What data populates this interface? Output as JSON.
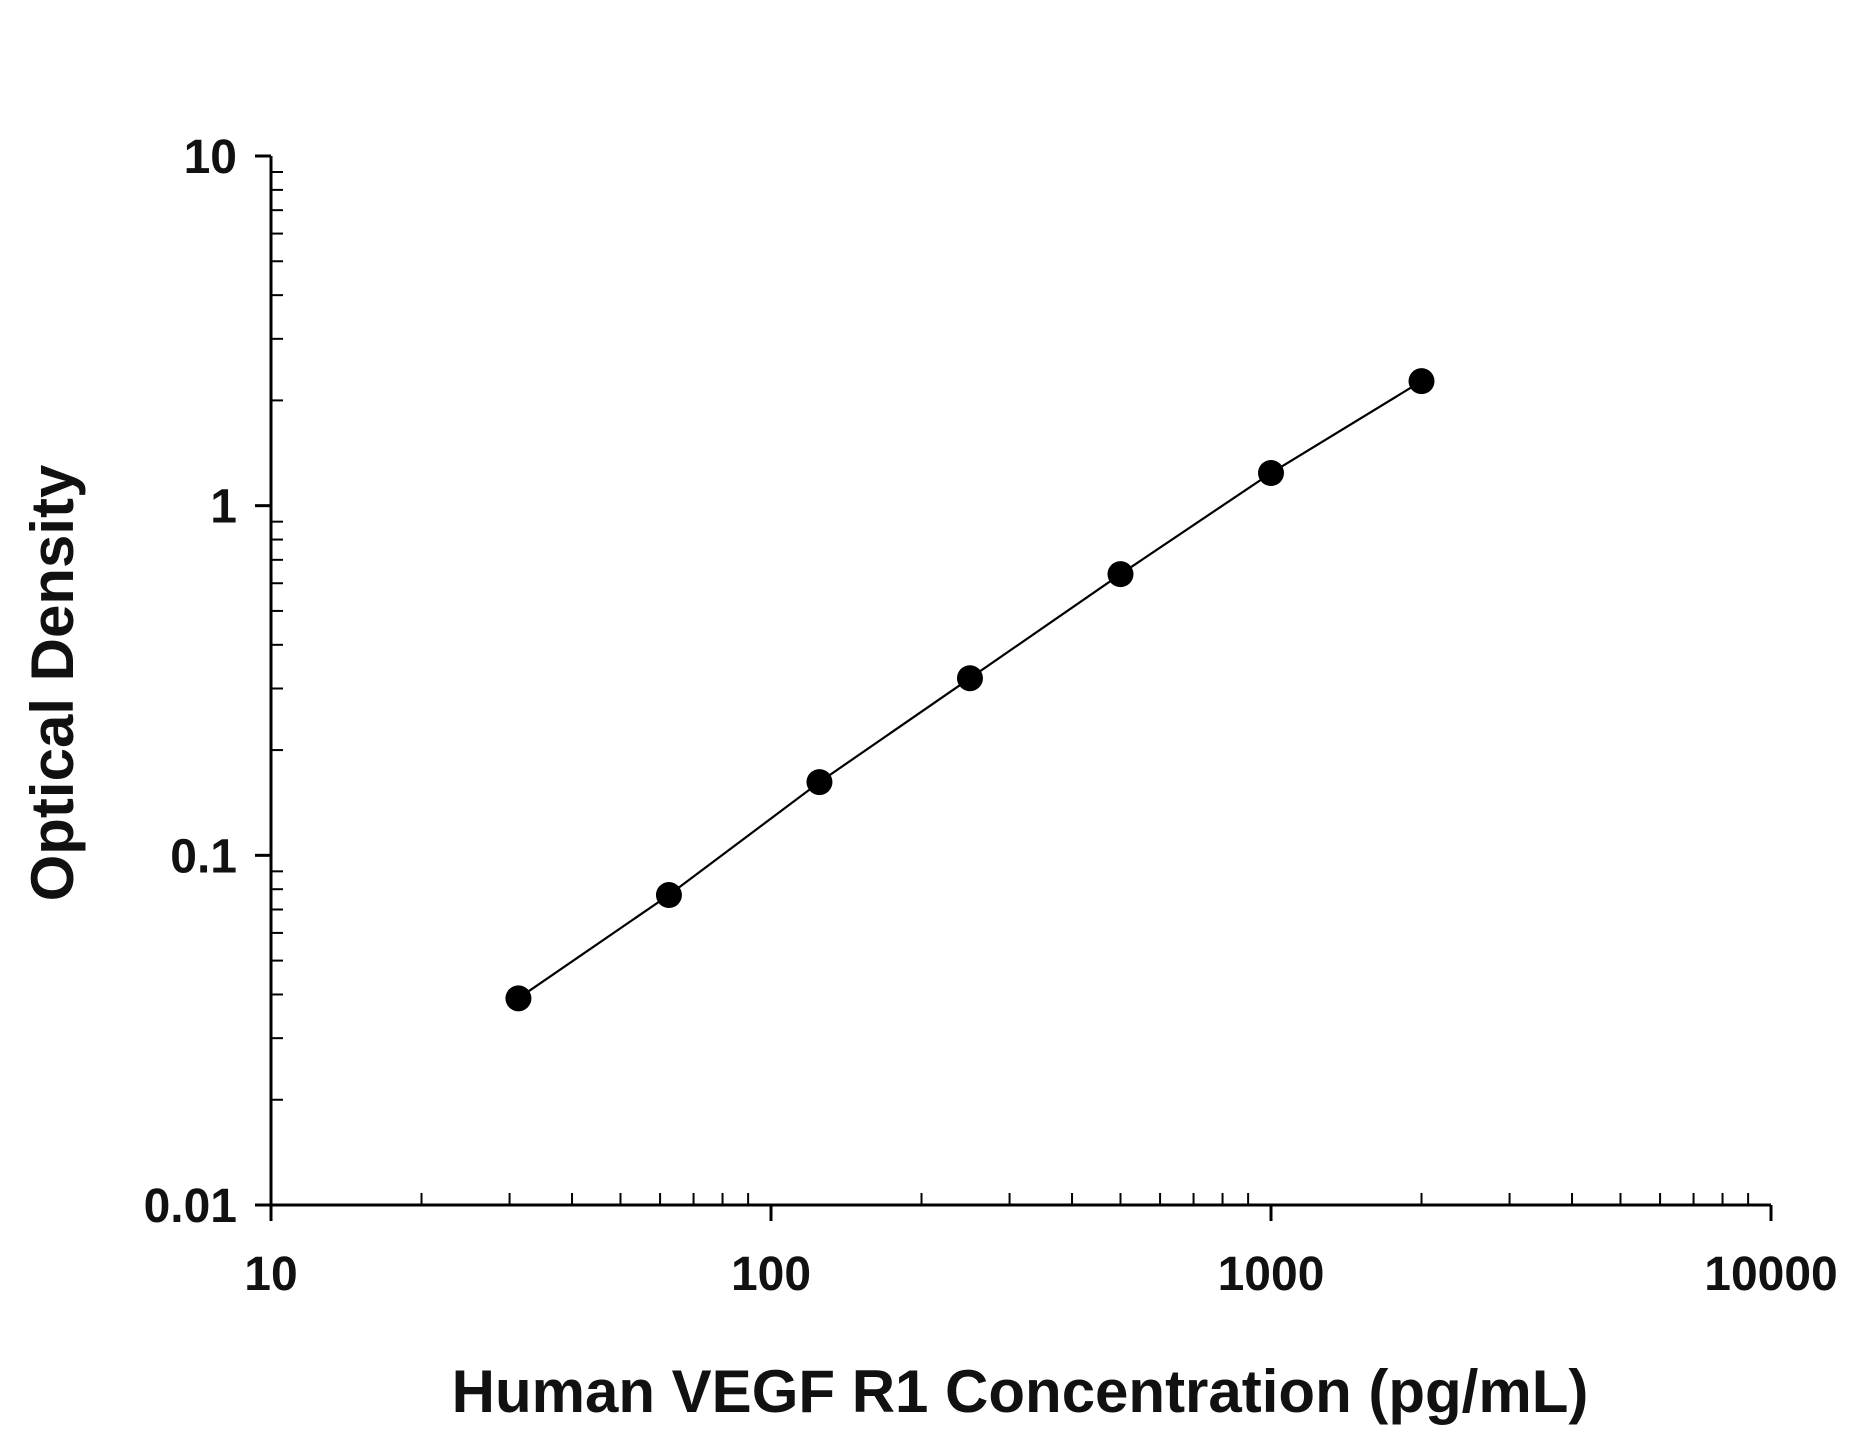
{
  "chart_data": {
    "type": "scatter",
    "title": "",
    "xlabel": "Human VEGF R1 Concentration (pg/mL)",
    "ylabel": "Optical Density",
    "x_scale": "log",
    "y_scale": "log",
    "xlim": [
      10,
      10000
    ],
    "ylim": [
      0.01,
      10
    ],
    "x_ticks": [
      {
        "value": 10,
        "label": "10"
      },
      {
        "value": 100,
        "label": "100"
      },
      {
        "value": 1000,
        "label": "1000"
      },
      {
        "value": 10000,
        "label": "10000"
      }
    ],
    "y_ticks": [
      {
        "value": 0.01,
        "label": "0.01"
      },
      {
        "value": 0.1,
        "label": "0.1"
      },
      {
        "value": 1,
        "label": "1"
      },
      {
        "value": 10,
        "label": "10"
      }
    ],
    "grid": false,
    "legend": "none",
    "series": [
      {
        "x": [
          31.25,
          62.5,
          125,
          250,
          500,
          1000,
          2000
        ],
        "y": [
          0.039,
          0.077,
          0.162,
          0.321,
          0.637,
          1.24,
          2.27
        ],
        "marker": "filled-circle",
        "connect": true,
        "color": "#000000"
      }
    ]
  }
}
